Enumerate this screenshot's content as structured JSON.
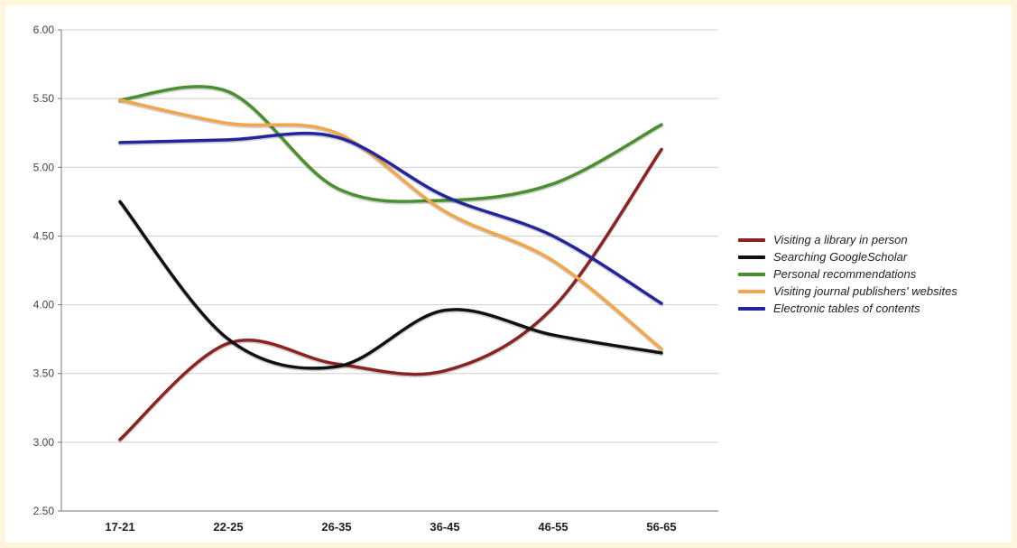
{
  "chart_data": {
    "type": "line",
    "title": "",
    "xlabel": "",
    "ylabel": "",
    "categories": [
      "17-21",
      "22-25",
      "26-35",
      "36-45",
      "46-55",
      "56-65"
    ],
    "ylim": [
      2.5,
      6.0
    ],
    "yticks": [
      "2.50",
      "3.00",
      "3.50",
      "4.00",
      "4.50",
      "5.00",
      "5.50",
      "6.00"
    ],
    "ytick_values": [
      2.5,
      3.0,
      3.5,
      4.0,
      4.5,
      5.0,
      5.5,
      6.0
    ],
    "grid": true,
    "legend_position": "right",
    "smooth": true,
    "series": [
      {
        "name": "Visiting a library in person",
        "color": "#8b2323",
        "values": [
          3.02,
          3.72,
          3.57,
          3.52,
          3.98,
          5.13
        ]
      },
      {
        "name": "Searching GoogleScholar",
        "color": "#111111",
        "values": [
          4.75,
          3.75,
          3.55,
          3.96,
          3.78,
          3.65
        ]
      },
      {
        "name": "Personal recommendations",
        "color": "#4a8f2f",
        "values": [
          5.49,
          5.55,
          4.85,
          4.76,
          4.88,
          5.31
        ]
      },
      {
        "name": "Visiting journal publishers' websites",
        "color": "#f2a54a",
        "values": [
          5.49,
          5.32,
          5.25,
          4.68,
          4.32,
          3.68
        ]
      },
      {
        "name": "Electronic tables of contents",
        "color": "#22269a",
        "values": [
          5.18,
          5.2,
          5.22,
          4.79,
          4.5,
          4.01
        ]
      }
    ]
  }
}
